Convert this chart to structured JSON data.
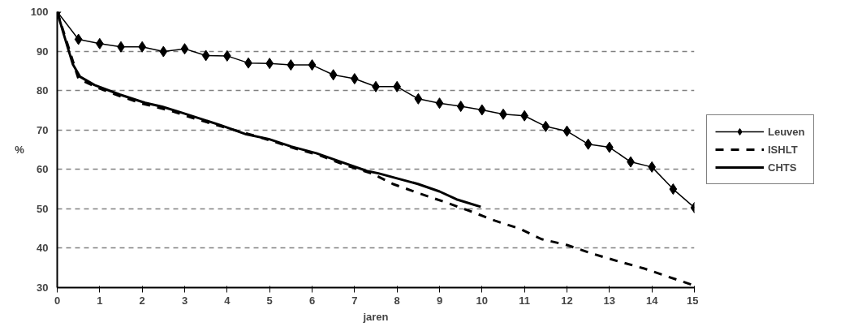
{
  "chart_data": {
    "type": "line",
    "xlabel": "jaren",
    "ylabel": "%",
    "xlim": [
      0,
      15
    ],
    "xticks": [
      0,
      1,
      2,
      3,
      4,
      5,
      6,
      7,
      8,
      9,
      10,
      11,
      12,
      13,
      14,
      15
    ],
    "ylim": [
      30,
      100
    ],
    "yticks": [
      30,
      40,
      50,
      60,
      70,
      80,
      90,
      100
    ],
    "grid": "y",
    "legend": "right",
    "series": [
      {
        "name": "Leuven",
        "color": "#000000",
        "marker": "diamond",
        "line_style": "solid",
        "x": [
          0,
          0.5,
          1,
          1.5,
          2,
          2.5,
          3,
          3.5,
          4,
          4.5,
          5,
          5.5,
          6,
          6.5,
          7,
          7.5,
          8,
          8.5,
          9,
          9.5,
          10,
          10.5,
          11,
          11.5,
          12,
          12.5,
          13,
          13.5,
          14,
          14.5,
          15
        ],
        "values": [
          100,
          93,
          91.9,
          91.1,
          91.1,
          89.9,
          90.6,
          88.9,
          88.8,
          87,
          86.9,
          86.5,
          86.5,
          84,
          83,
          81,
          81,
          77.9,
          76.8,
          76,
          75.1,
          74,
          73.6,
          70.9,
          69.7,
          66.4,
          65.6,
          61.9,
          60.6,
          55,
          50.3
        ]
      },
      {
        "name": "ISHLT",
        "color": "#000000",
        "marker": "none",
        "line_style": "dashed",
        "x": [
          0,
          0.5,
          1,
          1.5,
          2,
          2.7,
          3.2,
          3.8,
          4.5,
          5,
          5.6,
          6.2,
          6.8,
          7.4,
          7.9,
          8.5,
          9.1,
          9.7,
          10.3,
          10.9,
          11.4,
          12,
          12.6,
          13.2,
          13.8,
          15
        ],
        "values": [
          100,
          83,
          80.5,
          78.5,
          76.7,
          74.8,
          73,
          71.1,
          69,
          67.4,
          65.3,
          63.5,
          61,
          59,
          56.3,
          54,
          51.8,
          49.5,
          47,
          44.9,
          42.3,
          40.8,
          38.6,
          36.7,
          34.9,
          30.5
        ]
      },
      {
        "name": "CHTS",
        "color": "#000000",
        "marker": "none",
        "line_style": "solid",
        "x": [
          0,
          0.15,
          0.37,
          0.54,
          0.88,
          1.47,
          2.07,
          2.47,
          2.93,
          3.85,
          4.45,
          4.98,
          5.51,
          6.1,
          6.63,
          7.29,
          7.56,
          8.49,
          9,
          9.4,
          9.97
        ],
        "values": [
          100,
          94.4,
          86.6,
          83.5,
          81.4,
          79,
          76.9,
          75.9,
          74.4,
          71.2,
          68.9,
          67.7,
          65.8,
          64.1,
          62.1,
          59.6,
          59,
          56.3,
          54.4,
          52.4,
          50.5
        ]
      }
    ]
  }
}
